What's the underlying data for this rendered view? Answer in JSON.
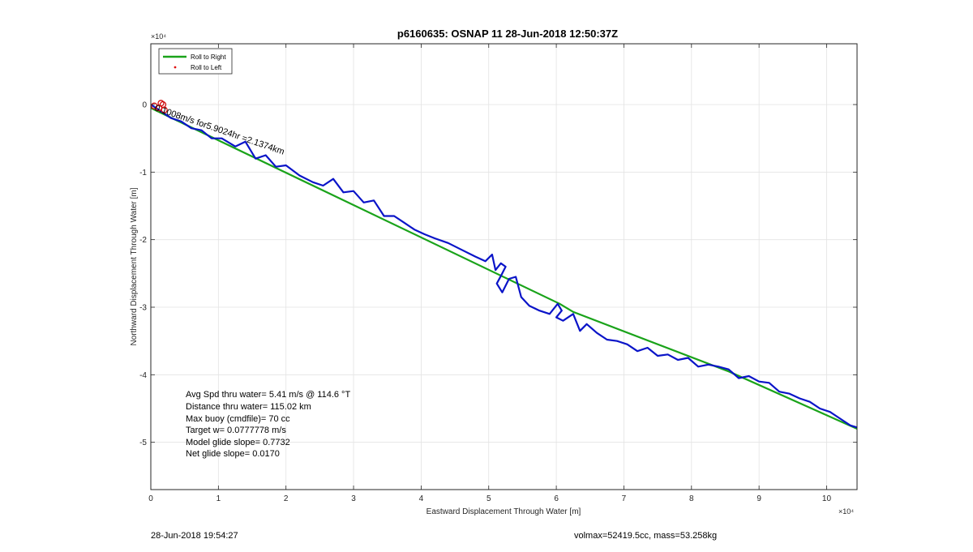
{
  "chart_data": {
    "type": "line",
    "title": "p6160635: OSNAP 11 28-Jun-2018 12:50:37Z",
    "xlabel": "Eastward Displacement Through Water [m]",
    "ylabel": "Northward Displacement Through Water [m]",
    "x_exponent_label": "×10⁴",
    "y_exponent_label": "×10⁴",
    "xlim": [
      0,
      10.45
    ],
    "ylim": [
      -5.7,
      0.9
    ],
    "xticks": [
      0,
      1,
      2,
      3,
      4,
      5,
      6,
      7,
      8,
      9,
      10
    ],
    "yticks": [
      0,
      -1,
      -2,
      -3,
      -4,
      -5
    ],
    "grid": true,
    "legend_position": "top-left",
    "legend": [
      {
        "label": "Roll to Right",
        "color": "#1aa31a",
        "style": "line"
      },
      {
        "label": "Roll to Left",
        "color": "#e01010",
        "style": "dot"
      }
    ],
    "segment_annotation": "0.1008m/s for5.9024hr =2.1374km",
    "series": [
      {
        "name": "Roll to Right",
        "color": "#1aa31a",
        "x": [
          0,
          6.05,
          6.25,
          8.55,
          10.45
        ],
        "y": [
          -0.05,
          -2.95,
          -3.07,
          -3.95,
          -4.8
        ]
      },
      {
        "color": "#0a14c8",
        "x": [
          0,
          0.15,
          0.3,
          0.45,
          0.6,
          0.75,
          0.9,
          1.05,
          1.25,
          1.4,
          1.55,
          1.7,
          1.85,
          2.0,
          2.2,
          2.4,
          2.55,
          2.7,
          2.85,
          3.0,
          3.15,
          3.3,
          3.45,
          3.6,
          3.75,
          3.9,
          4.05,
          4.2,
          4.4,
          4.6,
          4.8,
          4.95,
          5.05,
          5.1,
          5.18,
          5.25,
          5.2,
          5.12,
          5.2,
          5.3,
          5.4,
          5.48,
          5.6,
          5.75,
          5.9,
          6.02,
          6.08,
          6.0,
          6.1,
          6.25,
          6.35,
          6.45,
          6.6,
          6.75,
          6.9,
          7.05,
          7.2,
          7.35,
          7.5,
          7.65,
          7.8,
          7.95,
          8.1,
          8.25,
          8.4,
          8.55,
          8.7,
          8.85,
          9.0,
          9.15,
          9.3,
          9.45,
          9.6,
          9.75,
          9.9,
          10.05,
          10.2,
          10.35,
          10.45
        ],
        "y": [
          0.0,
          -0.1,
          -0.2,
          -0.25,
          -0.35,
          -0.38,
          -0.5,
          -0.5,
          -0.62,
          -0.55,
          -0.8,
          -0.75,
          -0.92,
          -0.9,
          -1.05,
          -1.15,
          -1.2,
          -1.1,
          -1.3,
          -1.28,
          -1.45,
          -1.42,
          -1.65,
          -1.65,
          -1.75,
          -1.85,
          -1.92,
          -1.98,
          -2.05,
          -2.15,
          -2.25,
          -2.32,
          -2.22,
          -2.45,
          -2.35,
          -2.4,
          -2.5,
          -2.65,
          -2.78,
          -2.58,
          -2.55,
          -2.85,
          -2.98,
          -3.05,
          -3.1,
          -2.95,
          -3.05,
          -3.15,
          -3.2,
          -3.1,
          -3.35,
          -3.25,
          -3.38,
          -3.48,
          -3.5,
          -3.55,
          -3.65,
          -3.6,
          -3.72,
          -3.7,
          -3.78,
          -3.75,
          -3.88,
          -3.85,
          -3.88,
          -3.92,
          -4.05,
          -4.02,
          -4.1,
          -4.12,
          -4.25,
          -4.28,
          -4.35,
          -4.4,
          -4.5,
          -4.55,
          -4.65,
          -4.75,
          -4.78
        ]
      }
    ],
    "roll_left_points": {
      "x": [
        0.05,
        0.12,
        0.18,
        0.2,
        0.15
      ],
      "y": [
        -0.02,
        -0.05,
        -0.0,
        -0.08,
        0.02
      ]
    },
    "stats_text": [
      "Avg Spd thru water=  5.41 m/s @ 114.6 °T",
      "Distance thru water= 115.02 km",
      "Max buoy (cmdfile)= 70 cc",
      "Target w= 0.0777778 m/s",
      "Model glide slope= 0.7732",
      "Net glide slope= 0.0170"
    ]
  },
  "footer": {
    "timestamp": "28-Jun-2018 19:54:27",
    "volume_mass": "volmax=52419.5cc, mass=53.258kg"
  }
}
